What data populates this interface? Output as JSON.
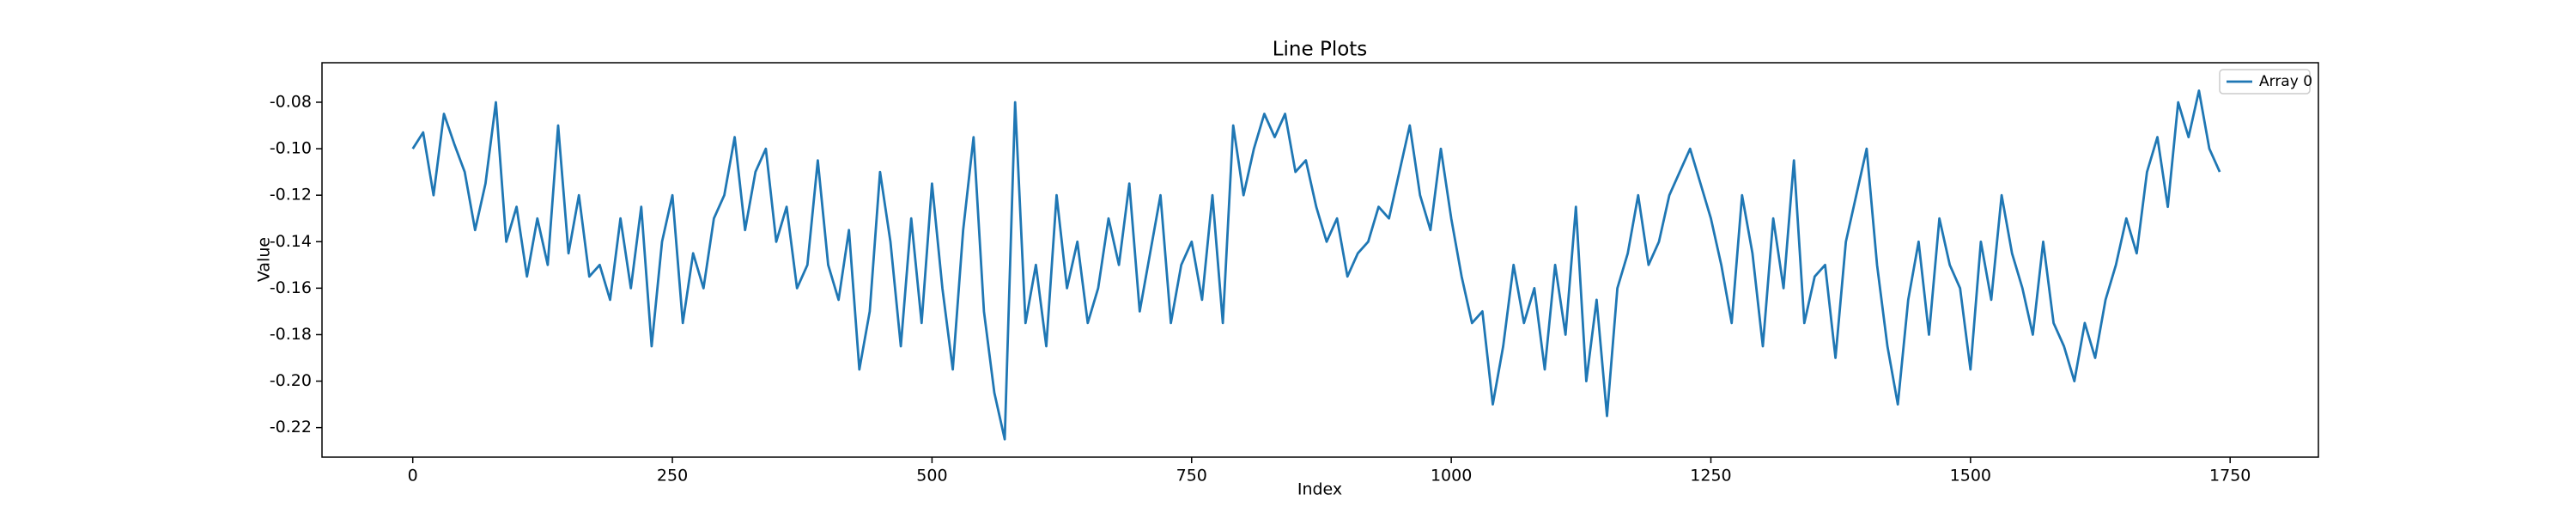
{
  "chart_data": {
    "type": "line",
    "title": "Line Plots",
    "xlabel": "Index",
    "ylabel": "Value",
    "x": [
      0,
      10,
      20,
      30,
      40,
      50,
      60,
      70,
      80,
      90,
      100,
      110,
      120,
      130,
      140,
      150,
      160,
      170,
      180,
      190,
      200,
      210,
      220,
      230,
      240,
      250,
      260,
      270,
      280,
      290,
      300,
      310,
      320,
      330,
      340,
      350,
      360,
      370,
      380,
      390,
      400,
      410,
      420,
      430,
      440,
      450,
      460,
      470,
      480,
      490,
      500,
      510,
      520,
      530,
      540,
      550,
      560,
      570,
      580,
      590,
      600,
      610,
      620,
      630,
      640,
      650,
      660,
      670,
      680,
      690,
      700,
      710,
      720,
      730,
      740,
      750,
      760,
      770,
      780,
      790,
      800,
      810,
      820,
      830,
      840,
      850,
      860,
      870,
      880,
      890,
      900,
      910,
      920,
      930,
      940,
      950,
      960,
      970,
      980,
      990,
      1000,
      1010,
      1020,
      1030,
      1040,
      1050,
      1060,
      1070,
      1080,
      1090,
      1100,
      1110,
      1120,
      1130,
      1140,
      1150,
      1160,
      1170,
      1180,
      1190,
      1200,
      1210,
      1220,
      1230,
      1240,
      1250,
      1260,
      1270,
      1280,
      1290,
      1300,
      1310,
      1320,
      1330,
      1340,
      1350,
      1360,
      1370,
      1380,
      1390,
      1400,
      1410,
      1420,
      1430,
      1440,
      1450,
      1460,
      1470,
      1480,
      1490,
      1500,
      1510,
      1520,
      1530,
      1540,
      1550,
      1560,
      1570,
      1580,
      1590,
      1600,
      1610,
      1620,
      1630,
      1640,
      1650,
      1660,
      1670,
      1680,
      1690,
      1700,
      1710,
      1720,
      1730,
      1740
    ],
    "series": [
      {
        "name": "Array 0",
        "color": "#1f77b4",
        "values": [
          -0.1,
          -0.093,
          -0.12,
          -0.085,
          -0.098,
          -0.11,
          -0.135,
          -0.115,
          -0.08,
          -0.14,
          -0.125,
          -0.155,
          -0.13,
          -0.15,
          -0.09,
          -0.145,
          -0.12,
          -0.155,
          -0.15,
          -0.165,
          -0.13,
          -0.16,
          -0.125,
          -0.185,
          -0.14,
          -0.12,
          -0.175,
          -0.145,
          -0.16,
          -0.13,
          -0.12,
          -0.095,
          -0.135,
          -0.11,
          -0.1,
          -0.14,
          -0.125,
          -0.16,
          -0.15,
          -0.105,
          -0.15,
          -0.165,
          -0.135,
          -0.195,
          -0.17,
          -0.11,
          -0.14,
          -0.185,
          -0.13,
          -0.175,
          -0.115,
          -0.16,
          -0.195,
          -0.135,
          -0.095,
          -0.17,
          -0.205,
          -0.225,
          -0.08,
          -0.175,
          -0.15,
          -0.185,
          -0.12,
          -0.16,
          -0.14,
          -0.175,
          -0.16,
          -0.13,
          -0.15,
          -0.115,
          -0.17,
          -0.145,
          -0.12,
          -0.175,
          -0.15,
          -0.14,
          -0.165,
          -0.12,
          -0.175,
          -0.09,
          -0.12,
          -0.1,
          -0.085,
          -0.095,
          -0.085,
          -0.11,
          -0.105,
          -0.125,
          -0.14,
          -0.13,
          -0.155,
          -0.145,
          -0.14,
          -0.125,
          -0.13,
          -0.11,
          -0.09,
          -0.12,
          -0.135,
          -0.1,
          -0.13,
          -0.155,
          -0.175,
          -0.17,
          -0.21,
          -0.185,
          -0.15,
          -0.175,
          -0.16,
          -0.195,
          -0.15,
          -0.18,
          -0.125,
          -0.2,
          -0.165,
          -0.215,
          -0.16,
          -0.145,
          -0.12,
          -0.15,
          -0.14,
          -0.12,
          -0.11,
          -0.1,
          -0.115,
          -0.13,
          -0.15,
          -0.175,
          -0.12,
          -0.145,
          -0.185,
          -0.13,
          -0.16,
          -0.105,
          -0.175,
          -0.155,
          -0.15,
          -0.19,
          -0.14,
          -0.12,
          -0.1,
          -0.15,
          -0.185,
          -0.21,
          -0.165,
          -0.14,
          -0.18,
          -0.13,
          -0.15,
          -0.16,
          -0.195,
          -0.14,
          -0.165,
          -0.12,
          -0.145,
          -0.16,
          -0.18,
          -0.14,
          -0.175,
          -0.185,
          -0.2,
          -0.175,
          -0.19,
          -0.165,
          -0.15,
          -0.13,
          -0.145,
          -0.11,
          -0.095,
          -0.125,
          -0.08,
          -0.095,
          -0.075,
          -0.1,
          -0.11
        ]
      }
    ],
    "xlim": [
      -87.4,
      1835
    ],
    "ylim": [
      -0.2327,
      -0.063
    ],
    "xticks": [
      0,
      250,
      500,
      750,
      1000,
      1250,
      1500,
      1750
    ],
    "yticks": [
      -0.22,
      {
        "value": -0.2,
        "label": "-0.20"
      },
      -0.18,
      -0.16,
      -0.14,
      -0.12,
      {
        "value": -0.1,
        "label": "-0.10"
      },
      -0.08
    ],
    "legend": "upper right"
  }
}
